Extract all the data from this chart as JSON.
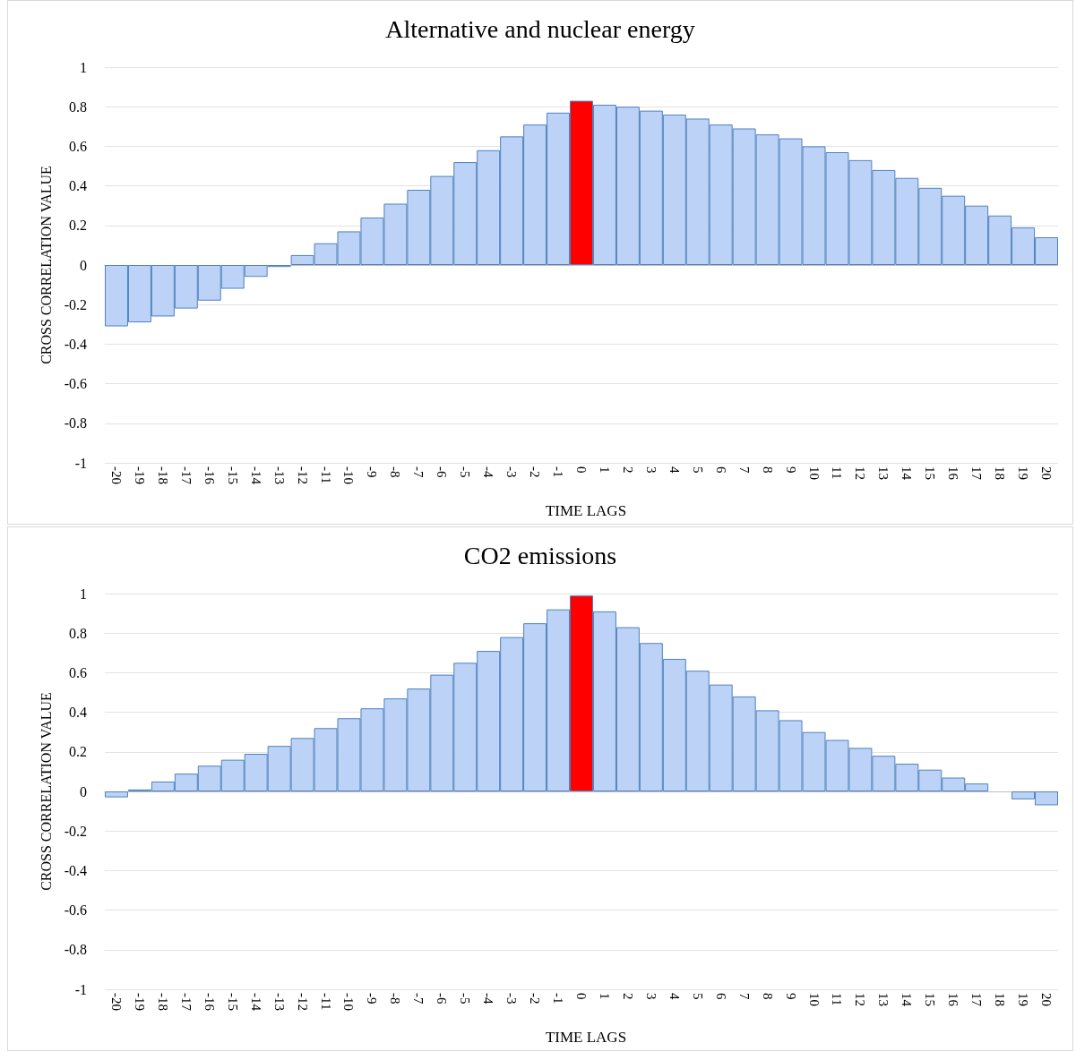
{
  "chart_data": [
    {
      "type": "bar",
      "title": "Alternative and nuclear energy",
      "xlabel": "TIME LAGS",
      "ylabel": "CROSS CORRELATION VALUE",
      "categories": [
        "-20",
        "-19",
        "-18",
        "-17",
        "-16",
        "-15",
        "-14",
        "-13",
        "-12",
        "-11",
        "-10",
        "-9",
        "-8",
        "-7",
        "-6",
        "-5",
        "-4",
        "-3",
        "-2",
        "-1",
        "0",
        "1",
        "2",
        "3",
        "4",
        "5",
        "6",
        "7",
        "8",
        "9",
        "10",
        "11",
        "12",
        "13",
        "14",
        "15",
        "16",
        "17",
        "18",
        "19",
        "20"
      ],
      "values": [
        -0.31,
        -0.29,
        -0.26,
        -0.22,
        -0.18,
        -0.12,
        -0.06,
        -0.01,
        0.05,
        0.11,
        0.17,
        0.24,
        0.31,
        0.38,
        0.45,
        0.52,
        0.58,
        0.65,
        0.71,
        0.77,
        0.83,
        0.81,
        0.8,
        0.78,
        0.76,
        0.74,
        0.71,
        0.69,
        0.66,
        0.64,
        0.6,
        0.57,
        0.53,
        0.48,
        0.44,
        0.39,
        0.35,
        0.3,
        0.25,
        0.19,
        0.14
      ],
      "colors": [
        "#bcd3f7",
        "#bcd3f7",
        "#bcd3f7",
        "#bcd3f7",
        "#bcd3f7",
        "#bcd3f7",
        "#bcd3f7",
        "#bcd3f7",
        "#bcd3f7",
        "#bcd3f7",
        "#bcd3f7",
        "#bcd3f7",
        "#bcd3f7",
        "#bcd3f7",
        "#bcd3f7",
        "#bcd3f7",
        "#bcd3f7",
        "#bcd3f7",
        "#bcd3f7",
        "#bcd3f7",
        "#ff0000",
        "#bcd3f7",
        "#bcd3f7",
        "#bcd3f7",
        "#bcd3f7",
        "#bcd3f7",
        "#bcd3f7",
        "#bcd3f7",
        "#bcd3f7",
        "#bcd3f7",
        "#bcd3f7",
        "#bcd3f7",
        "#bcd3f7",
        "#bcd3f7",
        "#bcd3f7",
        "#bcd3f7",
        "#bcd3f7",
        "#bcd3f7",
        "#bcd3f7",
        "#bcd3f7",
        "#bcd3f7"
      ],
      "ylim": [
        -1,
        1
      ],
      "yticks": [
        -1,
        -0.8,
        -0.6,
        -0.4,
        -0.2,
        0,
        0.2,
        0.4,
        0.6,
        0.8,
        1
      ],
      "grid": "y"
    },
    {
      "type": "bar",
      "title": "CO2 emissions",
      "xlabel": "TIME LAGS",
      "ylabel": "CROSS CORRELATION VALUE",
      "categories": [
        "-20",
        "-19",
        "-18",
        "-17",
        "-16",
        "-15",
        "-14",
        "-13",
        "-12",
        "-11",
        "-10",
        "-9",
        "-8",
        "-7",
        "-6",
        "-5",
        "-4",
        "-3",
        "-2",
        "-1",
        "0",
        "1",
        "2",
        "3",
        "4",
        "5",
        "6",
        "7",
        "8",
        "9",
        "10",
        "11",
        "12",
        "13",
        "14",
        "15",
        "16",
        "17",
        "18",
        "19",
        "20"
      ],
      "values": [
        -0.03,
        0.01,
        0.05,
        0.09,
        0.13,
        0.16,
        0.19,
        0.23,
        0.27,
        0.32,
        0.37,
        0.42,
        0.47,
        0.52,
        0.59,
        0.65,
        0.71,
        0.78,
        0.85,
        0.92,
        0.99,
        0.91,
        0.83,
        0.75,
        0.67,
        0.61,
        0.54,
        0.48,
        0.41,
        0.36,
        0.3,
        0.26,
        0.22,
        0.18,
        0.14,
        0.11,
        0.07,
        0.04,
        0,
        -0.04,
        -0.07
      ],
      "colors": [
        "#bcd3f7",
        "#bcd3f7",
        "#bcd3f7",
        "#bcd3f7",
        "#bcd3f7",
        "#bcd3f7",
        "#bcd3f7",
        "#bcd3f7",
        "#bcd3f7",
        "#bcd3f7",
        "#bcd3f7",
        "#bcd3f7",
        "#bcd3f7",
        "#bcd3f7",
        "#bcd3f7",
        "#bcd3f7",
        "#bcd3f7",
        "#bcd3f7",
        "#bcd3f7",
        "#bcd3f7",
        "#ff0000",
        "#bcd3f7",
        "#bcd3f7",
        "#bcd3f7",
        "#bcd3f7",
        "#bcd3f7",
        "#bcd3f7",
        "#bcd3f7",
        "#bcd3f7",
        "#bcd3f7",
        "#bcd3f7",
        "#bcd3f7",
        "#bcd3f7",
        "#bcd3f7",
        "#bcd3f7",
        "#bcd3f7",
        "#bcd3f7",
        "#bcd3f7",
        "#bcd3f7",
        "#bcd3f7",
        "#bcd3f7"
      ],
      "ylim": [
        -1,
        1
      ],
      "yticks": [
        -1,
        -0.8,
        -0.6,
        -0.4,
        -0.2,
        0,
        0.2,
        0.4,
        0.6,
        0.8,
        1
      ],
      "grid": "y"
    }
  ]
}
